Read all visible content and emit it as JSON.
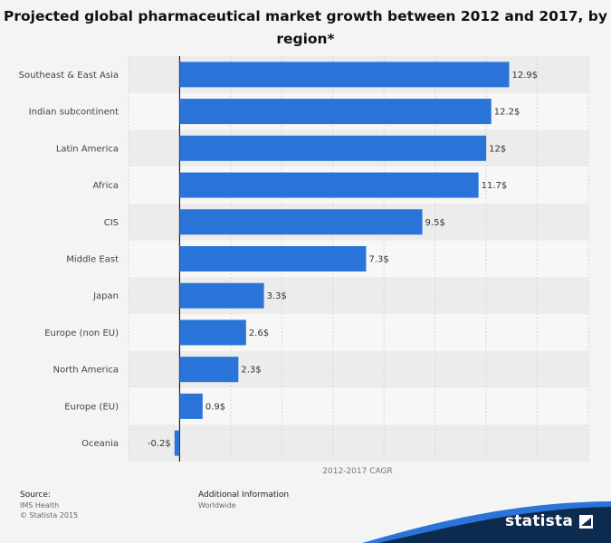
{
  "chart_data": {
    "type": "bar",
    "orientation": "horizontal",
    "title": "Projected global pharmaceutical market growth between 2012 and 2017, by region*",
    "xlabel": "2012-2017 CAGR",
    "ylabel": "",
    "categories": [
      "Southeast & East Asia",
      "Indian subcontinent",
      "Latin America",
      "Africa",
      "CIS",
      "Middle East",
      "Japan",
      "Europe (non EU)",
      "North America",
      "Europe (EU)",
      "Oceania"
    ],
    "values": [
      12.9,
      12.2,
      12,
      11.7,
      9.5,
      7.3,
      3.3,
      2.6,
      2.3,
      0.9,
      -0.2
    ],
    "data_labels": [
      "12.9$",
      "12.2$",
      "12$",
      "11.7$",
      "9.5$",
      "7.3$",
      "3.3$",
      "2.6$",
      "2.3$",
      "0.9$",
      "-0.2$"
    ],
    "xlim": [
      -2,
      16
    ],
    "grid": true,
    "bar_color": "#2a74d9"
  },
  "footer": {
    "source_label": "Source:",
    "source_lines": [
      "IMS Health",
      "© Statista 2015"
    ],
    "info_label": "Additional Information",
    "info_text": "Worldwide"
  },
  "brand": {
    "name": "statista",
    "color": "#0d2a4f"
  }
}
